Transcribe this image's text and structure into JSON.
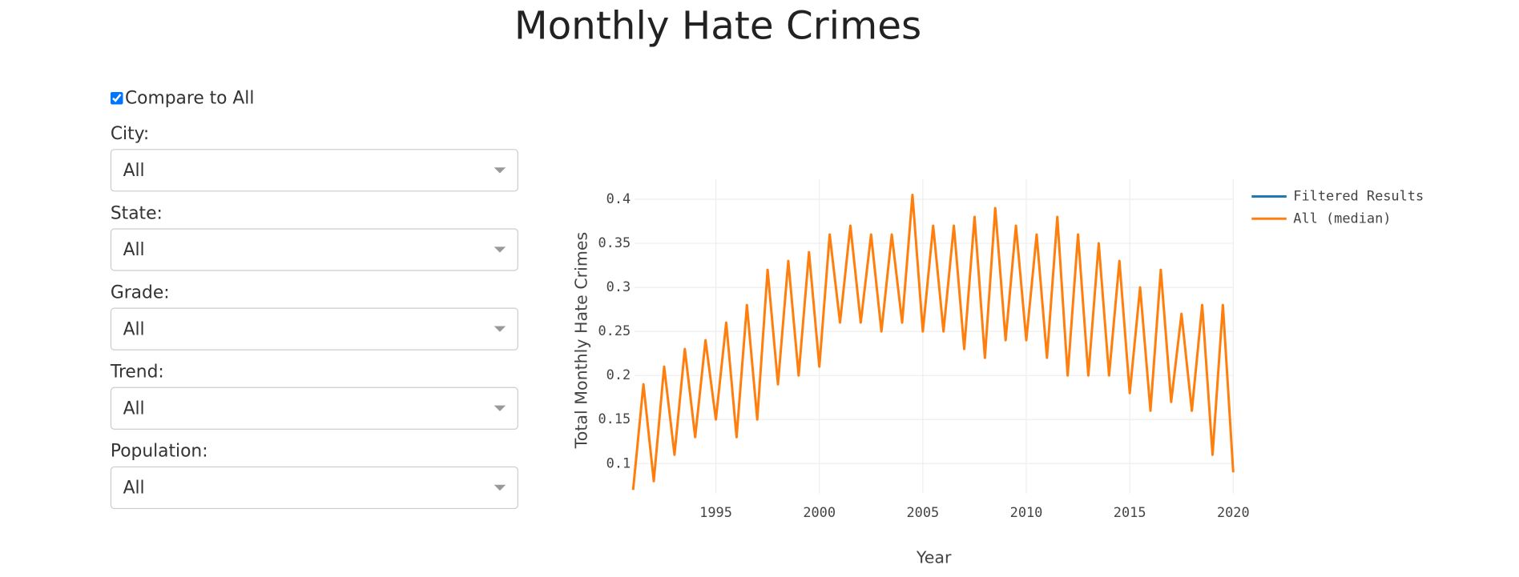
{
  "header": {
    "title": "Monthly Hate Crimes"
  },
  "controls": {
    "compare_label": "Compare to All",
    "compare_checked": true,
    "filters": [
      {
        "label": "City:",
        "value": "All"
      },
      {
        "label": "State:",
        "value": "All"
      },
      {
        "label": "Grade:",
        "value": "All"
      },
      {
        "label": "Trend:",
        "value": "All"
      },
      {
        "label": "Population:",
        "value": "All"
      }
    ]
  },
  "chart_data": {
    "type": "line",
    "xlabel": "Year",
    "ylabel": "Total Monthly Hate Crimes",
    "x": [
      1991.0,
      1991.5,
      1992.0,
      1992.5,
      1993.0,
      1993.5,
      1994.0,
      1994.5,
      1995.0,
      1995.5,
      1996.0,
      1996.5,
      1997.0,
      1997.5,
      1998.0,
      1998.5,
      1999.0,
      1999.5,
      2000.0,
      2000.5,
      2001.0,
      2001.5,
      2002.0,
      2002.5,
      2003.0,
      2003.5,
      2004.0,
      2004.5,
      2005.0,
      2005.5,
      2006.0,
      2006.5,
      2007.0,
      2007.5,
      2008.0,
      2008.5,
      2009.0,
      2009.5,
      2010.0,
      2010.5,
      2011.0,
      2011.5,
      2012.0,
      2012.5,
      2013.0,
      2013.5,
      2014.0,
      2014.5,
      2015.0,
      2015.5,
      2016.0,
      2016.5,
      2017.0,
      2017.5,
      2018.0,
      2018.5,
      2019.0,
      2019.5,
      2020.0
    ],
    "series": [
      {
        "name": "Filtered Results",
        "color": "#1f77b4",
        "values": [
          null,
          null,
          null,
          null,
          null,
          null,
          null,
          null,
          null,
          null,
          null,
          null,
          null,
          null,
          null,
          null,
          null,
          null,
          null,
          null,
          null,
          null,
          null,
          null,
          null,
          null,
          null,
          null,
          null,
          null,
          null,
          null,
          null,
          null,
          null,
          null,
          null,
          null,
          null,
          null,
          null,
          null,
          null,
          null,
          null,
          null,
          null,
          null,
          null,
          null,
          null,
          null,
          null,
          null,
          null,
          null,
          null,
          null,
          null
        ]
      },
      {
        "name": "All (median)",
        "color": "#ff7f0e",
        "values": [
          0.07,
          0.19,
          0.08,
          0.21,
          0.11,
          0.23,
          0.13,
          0.24,
          0.15,
          0.26,
          0.13,
          0.28,
          0.15,
          0.32,
          0.19,
          0.33,
          0.2,
          0.34,
          0.21,
          0.36,
          0.26,
          0.37,
          0.26,
          0.36,
          0.25,
          0.36,
          0.26,
          0.405,
          0.25,
          0.37,
          0.25,
          0.37,
          0.23,
          0.38,
          0.22,
          0.39,
          0.24,
          0.37,
          0.24,
          0.36,
          0.22,
          0.38,
          0.2,
          0.36,
          0.2,
          0.35,
          0.2,
          0.33,
          0.18,
          0.3,
          0.16,
          0.32,
          0.17,
          0.27,
          0.16,
          0.28,
          0.11,
          0.28,
          0.09
        ]
      }
    ],
    "xlim": [
      1991.07,
      2020
    ],
    "xticks": [
      1995,
      2000,
      2005,
      2010,
      2015,
      2020
    ],
    "ylim": [
      0.066,
      0.423
    ],
    "yticks": [
      0.1,
      0.15,
      0.2,
      0.25,
      0.3,
      0.35,
      0.4
    ],
    "grid": true
  }
}
